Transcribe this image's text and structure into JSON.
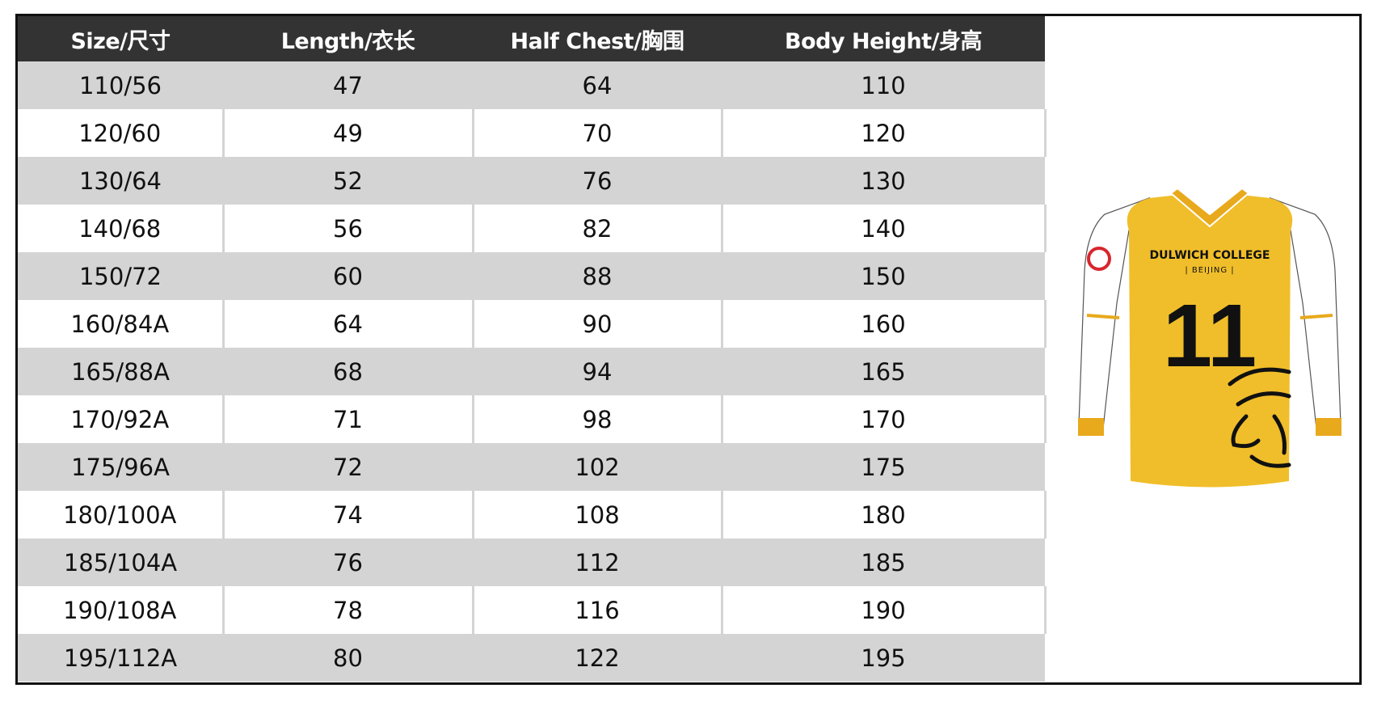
{
  "table": {
    "headers": [
      "Size/尺寸",
      "Length/衣长",
      "Half Chest/胸围",
      "Body Height/身高"
    ],
    "rows": [
      [
        "110/56",
        "47",
        "64",
        "110"
      ],
      [
        "120/60",
        "49",
        "70",
        "120"
      ],
      [
        "130/64",
        "52",
        "76",
        "130"
      ],
      [
        "140/68",
        "56",
        "82",
        "140"
      ],
      [
        "150/72",
        "60",
        "88",
        "150"
      ],
      [
        "160/84A",
        "64",
        "90",
        "160"
      ],
      [
        "165/88A",
        "68",
        "94",
        "165"
      ],
      [
        "170/92A",
        "71",
        "98",
        "170"
      ],
      [
        "175/96A",
        "72",
        "102",
        "175"
      ],
      [
        "180/100A",
        "74",
        "108",
        "180"
      ],
      [
        "185/104A",
        "76",
        "112",
        "185"
      ],
      [
        "190/108A",
        "78",
        "116",
        "190"
      ],
      [
        "195/112A",
        "80",
        "122",
        "195"
      ]
    ]
  },
  "jersey": {
    "school": "DULWICH COLLEGE",
    "campus": "| BEIJING |",
    "number": "11",
    "colors": {
      "body": "#F0BE2A",
      "trim": "#E8A91C",
      "sleeve": "#FFFFFF",
      "print": "#111111",
      "badge": "#D8262E"
    }
  }
}
